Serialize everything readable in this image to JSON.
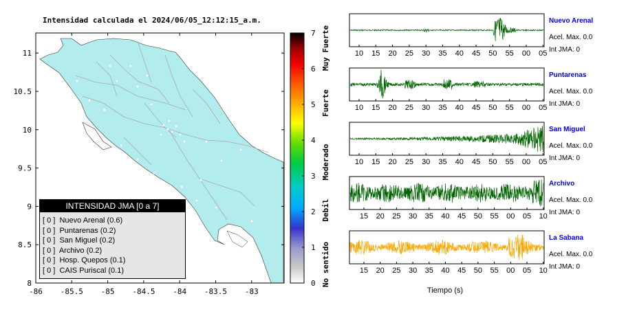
{
  "header": {
    "title": "Intensidad calculada el 2024/06/05_12:12:15_a.m."
  },
  "colors": {
    "land": "#b3ecec",
    "wave_green": "#006400",
    "wave_orange": "#ffa500",
    "station_label": "#0000ee"
  },
  "map_axes": {
    "x_ticks": [
      "-86",
      "-85.5",
      "-85",
      "-84.5",
      "-84",
      "-83.5",
      "-83"
    ],
    "y_ticks": [
      "8",
      "8.5",
      "9",
      "9.5",
      "10",
      "10.5",
      "11"
    ]
  },
  "colorbar": {
    "ticks": [
      "0",
      "1",
      "2",
      "3",
      "4",
      "5",
      "6",
      "7"
    ],
    "labels": [
      "No sentido",
      "Debil",
      "Moderado",
      "Fuerte",
      "Muy Fuerte"
    ]
  },
  "legend": {
    "title": "INTENSIDAD JMA [0 a 7]",
    "items": [
      {
        "value": "[ 0 ]",
        "name": "Nuevo Arenal (0.6)"
      },
      {
        "value": "[ 0 ]",
        "name": "Puntarenas (0.2)"
      },
      {
        "value": "[ 0 ]",
        "name": "San Miguel (0.2)"
      },
      {
        "value": "[ 0 ]",
        "name": "Archivo (0.2)"
      },
      {
        "value": "[ 0 ]",
        "name": "Hosp. Quepos (0.1)"
      },
      {
        "value": "[ 0 ]",
        "name": "CAIS Puriscal (0.1)"
      }
    ]
  },
  "waveforms": {
    "xlabel": "Tiempo (s)",
    "panels": [
      {
        "station": "Nuevo Arenal",
        "accel": "Acel. Max. 0.0",
        "int": "Int JMA: 0",
        "ticks": [
          "10",
          "15",
          "20",
          "25",
          "30",
          "35",
          "40",
          "45",
          "50",
          "55",
          "00",
          "05"
        ],
        "color": "green",
        "profile": "late_burst"
      },
      {
        "station": "Puntarenas",
        "accel": "Acel. Max. 0.0",
        "int": "Int JMA: 0",
        "ticks": [
          "10",
          "15",
          "20",
          "25",
          "30",
          "35",
          "40",
          "45",
          "50",
          "55",
          "00",
          "05"
        ],
        "color": "green",
        "profile": "early_spike"
      },
      {
        "station": "San Miguel",
        "accel": "Acel. Max. 0.0",
        "int": "Int JMA: 0",
        "ticks": [
          "10",
          "15",
          "20",
          "25",
          "30",
          "35",
          "40",
          "45",
          "50",
          "55",
          "00",
          "05"
        ],
        "color": "green",
        "profile": "growing"
      },
      {
        "station": "Archivo",
        "accel": "Acel. Max. 0.0",
        "int": "Int JMA: 0",
        "ticks": [
          "15",
          "20",
          "25",
          "30",
          "35",
          "40",
          "45",
          "50",
          "55",
          "00",
          "05",
          "10"
        ],
        "color": "green",
        "profile": "noisy"
      },
      {
        "station": "La Sabana",
        "accel": "Acel. Max. 0.0",
        "int": "Int JMA: 0",
        "ticks": [
          "15",
          "20",
          "25",
          "30",
          "35",
          "40",
          "45",
          "50",
          "55",
          "00",
          "05",
          "10"
        ],
        "color": "orange",
        "profile": "noisy_mid"
      }
    ]
  }
}
